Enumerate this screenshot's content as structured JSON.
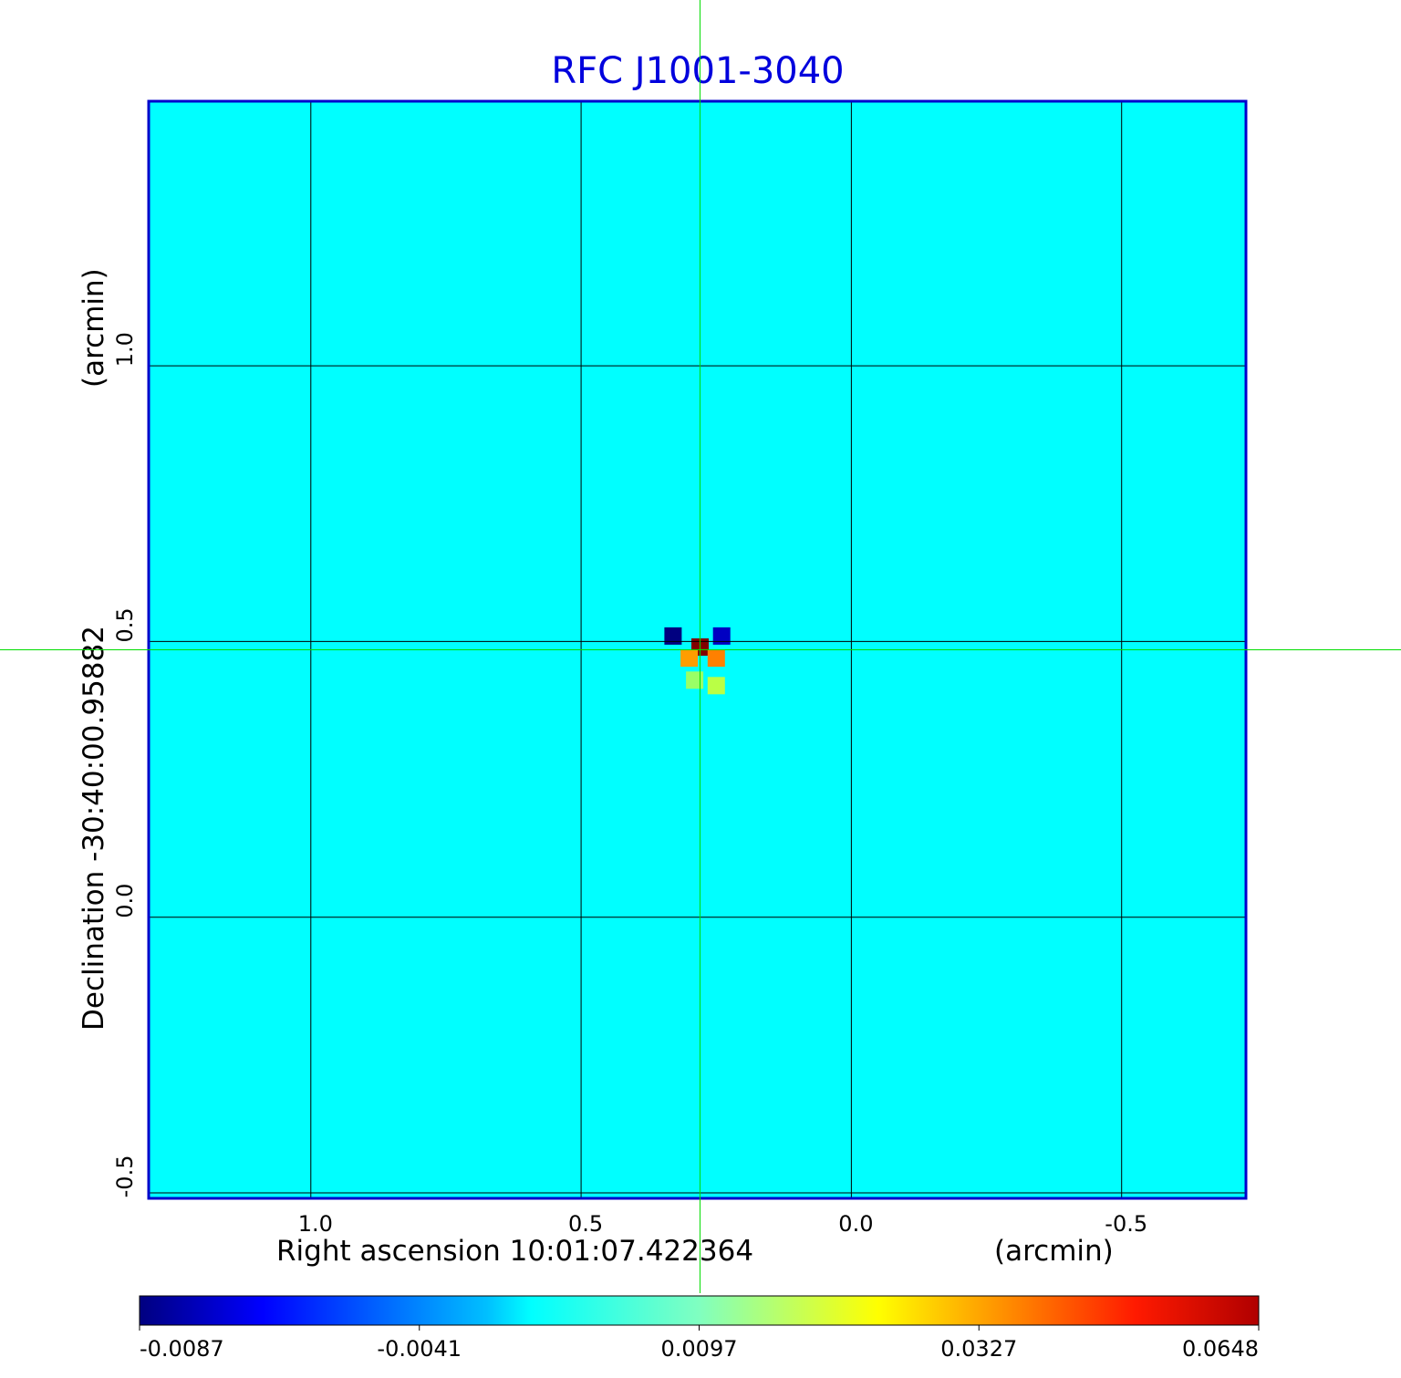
{
  "chart_data": {
    "type": "heatmap",
    "title": "RFC J1001-3040",
    "xlabel": "Right ascension  10:01:07.422364",
    "xunit": "(arcmin)",
    "ylabel": "Declination  -30:40:00.95882",
    "yunit": "(arcmin)",
    "x_ticks": [
      {
        "value": 1.0,
        "label": "1.0"
      },
      {
        "value": 0.5,
        "label": "0.5"
      },
      {
        "value": 0.0,
        "label": "0.0"
      },
      {
        "value": -0.5,
        "label": "-0.5"
      }
    ],
    "y_ticks": [
      {
        "value": 1.0,
        "label": "1.0"
      },
      {
        "value": 0.5,
        "label": "0.5"
      },
      {
        "value": 0.0,
        "label": "0.0"
      },
      {
        "value": -0.5,
        "label": "-0.5"
      }
    ],
    "xlim": [
      1.3,
      -0.73
    ],
    "ylim": [
      -0.51,
      1.48
    ],
    "x_reversed": true,
    "grid": true,
    "crosshair": {
      "x": 0.28,
      "y": 0.485,
      "color": "#00dd00"
    },
    "colorbar": {
      "position": "bottom",
      "colormap": "jet",
      "ticks": [
        "-0.0087",
        "-0.0041",
        "0.0097",
        "0.0327",
        "0.0648"
      ],
      "tick_values": [
        -0.0087,
        -0.0041,
        0.0097,
        0.0327,
        0.0648
      ]
    },
    "background_value": 0.003,
    "features": [
      {
        "x": 0.28,
        "y": 0.49,
        "value": 0.0648
      },
      {
        "x": 0.25,
        "y": 0.47,
        "value": 0.0327
      },
      {
        "x": 0.3,
        "y": 0.47,
        "value": 0.03
      },
      {
        "x": 0.33,
        "y": 0.51,
        "value": -0.0087
      },
      {
        "x": 0.24,
        "y": 0.51,
        "value": -0.0075
      },
      {
        "x": 0.25,
        "y": 0.42,
        "value": 0.015
      },
      {
        "x": 0.29,
        "y": 0.43,
        "value": 0.012
      }
    ],
    "frame_color": "#0000cc"
  }
}
